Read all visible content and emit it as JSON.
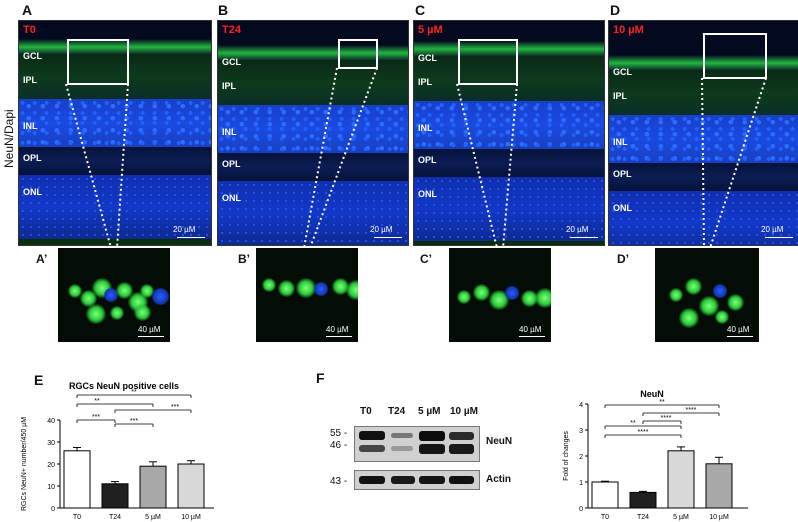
{
  "panels": {
    "A": {
      "letter": "A",
      "condition": "T0",
      "inset_letter": "A’"
    },
    "B": {
      "letter": "B",
      "condition": "T24",
      "inset_letter": "B’"
    },
    "C": {
      "letter": "C",
      "condition": "5 µM",
      "inset_letter": "C’"
    },
    "D": {
      "letter": "D",
      "condition": "10 µM",
      "inset_letter": "D’"
    }
  },
  "layers": [
    "GCL",
    "IPL",
    "INL",
    "OPL",
    "ONL"
  ],
  "stain_label": "NeuN/Dapi",
  "scale_main": "20 µM",
  "scale_inset": "40 µM",
  "panel_E": {
    "letter": "E"
  },
  "panel_F": {
    "letter": "F"
  },
  "blot": {
    "columns": [
      "T0",
      "T24",
      "5 µM",
      "10 µM"
    ],
    "markers": [
      "55 -",
      "46 -",
      "43 -"
    ],
    "labels": [
      "NeuN",
      "Actin"
    ]
  },
  "chart_data": [
    {
      "type": "bar",
      "title": "RGCs NeuN positive cells",
      "ylabel": "RGCs NeuN+ number/450 µM",
      "categories": [
        "T0",
        "T24",
        "5 µM",
        "10 µM"
      ],
      "values": [
        26,
        11,
        19,
        20
      ],
      "errors": [
        1.5,
        1,
        2,
        1.5
      ],
      "colors": [
        "#ffffff",
        "#202020",
        "#a8a8a8",
        "#d8d8d8"
      ],
      "ylim": [
        0,
        40
      ],
      "yticks": [
        "0",
        "10",
        "20",
        "30",
        "40"
      ],
      "significance": [
        {
          "from": 0,
          "to": 3,
          "label": "**"
        },
        {
          "from": 0,
          "to": 2,
          "label": "**"
        },
        {
          "from": 1,
          "to": 3,
          "label": "***"
        },
        {
          "from": 0,
          "to": 1,
          "label": "***"
        },
        {
          "from": 1,
          "to": 2,
          "label": "***"
        }
      ]
    },
    {
      "type": "bar",
      "title": "NeuN",
      "ylabel": "Fold of changes",
      "categories": [
        "T0",
        "T24",
        "5 µM",
        "10 µM"
      ],
      "values": [
        1.0,
        0.6,
        2.2,
        1.7
      ],
      "errors": [
        0.03,
        0.04,
        0.15,
        0.25
      ],
      "colors": [
        "#ffffff",
        "#202020",
        "#d8d8d8",
        "#a8a8a8"
      ],
      "ylim": [
        0,
        4
      ],
      "yticks": [
        "0",
        "1",
        "2",
        "3",
        "4"
      ],
      "significance": [
        {
          "from": 0,
          "to": 3,
          "label": "**"
        },
        {
          "from": 1,
          "to": 3,
          "label": "****"
        },
        {
          "from": 0,
          "to": 2,
          "label": "**"
        },
        {
          "from": 1,
          "to": 2,
          "label": "****"
        },
        {
          "from": 0,
          "to": 2,
          "label": "****"
        }
      ]
    }
  ]
}
